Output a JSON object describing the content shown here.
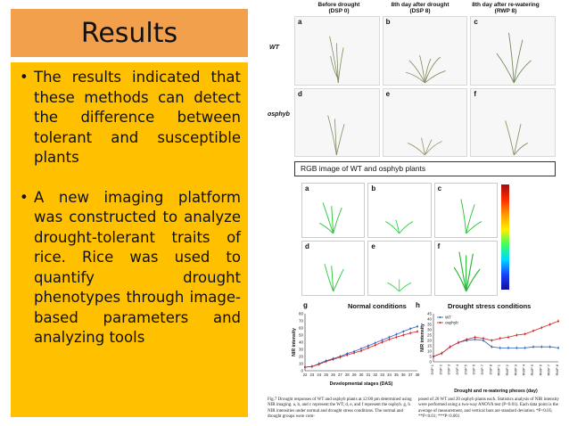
{
  "slide": {
    "title": "Results",
    "bullets": [
      "The results indicated that these methods can detect the difference between tolerant and susceptible plants",
      "A new imaging platform was constructed to analyze drought-tolerant traits of rice. Rice was used to quantify drought phenotypes through image-based parameters and analyzing tools"
    ],
    "bullet_symbol": "•"
  },
  "figure_top": {
    "column_headers": [
      "Before drought\n(DSP 0)",
      "8th day after drought\n(DSP 8)",
      "8th day after re-watering\n(RWP 8)"
    ],
    "row_labels": [
      "WT",
      "osphyb"
    ],
    "panel_labels": [
      "a",
      "b",
      "c",
      "d",
      "e",
      "f"
    ],
    "caption": "RGB image of WT and osphyb plants"
  },
  "figure_nir": {
    "panel_labels": [
      "a",
      "b",
      "c",
      "d",
      "e",
      "f"
    ],
    "scale_colors": [
      "#a01010",
      "#ff2a00",
      "#ff9a00",
      "#ffee00",
      "#3cff60",
      "#00d8ff",
      "#1a40ff",
      "#10109a"
    ]
  },
  "chart_data": [
    {
      "type": "line",
      "panel_label": "g",
      "title": "Normal conditions",
      "xlabel": "Developmental stages (DAS)",
      "ylabel": "NIR intensity",
      "ylim": [
        0,
        80
      ],
      "yticks": [
        0,
        10,
        20,
        30,
        40,
        50,
        60,
        70,
        80
      ],
      "categories": [
        "22",
        "23",
        "24",
        "25",
        "26",
        "27",
        "28",
        "29",
        "30",
        "31",
        "32",
        "33",
        "34",
        "35",
        "36",
        "37",
        "38"
      ],
      "series": [
        {
          "name": "WT",
          "color": "#3060c0",
          "values": [
            5,
            6,
            10,
            14,
            17,
            20,
            24,
            27,
            31,
            35,
            39,
            43,
            47,
            51,
            55,
            59,
            62
          ]
        },
        {
          "name": "osphyb",
          "color": "#d02020",
          "values": [
            5,
            6,
            9,
            13,
            16,
            19,
            22,
            25,
            28,
            32,
            36,
            40,
            44,
            47,
            50,
            53,
            55
          ]
        }
      ]
    },
    {
      "type": "line",
      "panel_label": "h",
      "title": "Drought stress conditions",
      "xlabel": "Drought and re-watering pheses (day)",
      "ylabel": "NIR intensity",
      "ylim": [
        0,
        45
      ],
      "yticks": [
        0,
        5,
        10,
        15,
        20,
        25,
        30,
        35,
        40,
        45
      ],
      "categories": [
        "DSP 1",
        "DSP 2",
        "DSP 3",
        "DSP 4",
        "DSP 5",
        "DSP 6",
        "DSP 7",
        "DSP 8",
        "RWP 1",
        "RWP 2",
        "RWP 3",
        "RWP 4",
        "RWP 5",
        "RWP 6",
        "RWP 7",
        "RWP 8"
      ],
      "series": [
        {
          "name": "WT",
          "color": "#3060c0",
          "values": [
            5,
            8,
            14,
            18,
            20,
            21,
            20,
            14,
            13,
            13,
            13,
            13,
            14,
            14,
            14,
            13
          ]
        },
        {
          "name": "osphyb",
          "color": "#d02020",
          "values": [
            5,
            8,
            14,
            18,
            21,
            23,
            22,
            20,
            22,
            23,
            25,
            26,
            29,
            32,
            35,
            38
          ]
        }
      ]
    }
  ],
  "figure_caption": {
    "col1": "Fig.7 Drought responses of WT and osphyb plants at 12:00 pm determined using NIR imaging. a, b, and c represent the WT; d, e, and f represent the osphyb. g, h NIR intensities under normal and drought stress conditions. The normal and drought groups were com-",
    "col2": "posed of 20 WT and 20 osphyb plants each. Statistics analysis of NIR intensity were performed using a two-way ANOVA test (P<0.01). Each data point is the average of measurement, and vertical bars are standard deviation. *P<0.05; **P<0.01; ***P<0.001"
  }
}
